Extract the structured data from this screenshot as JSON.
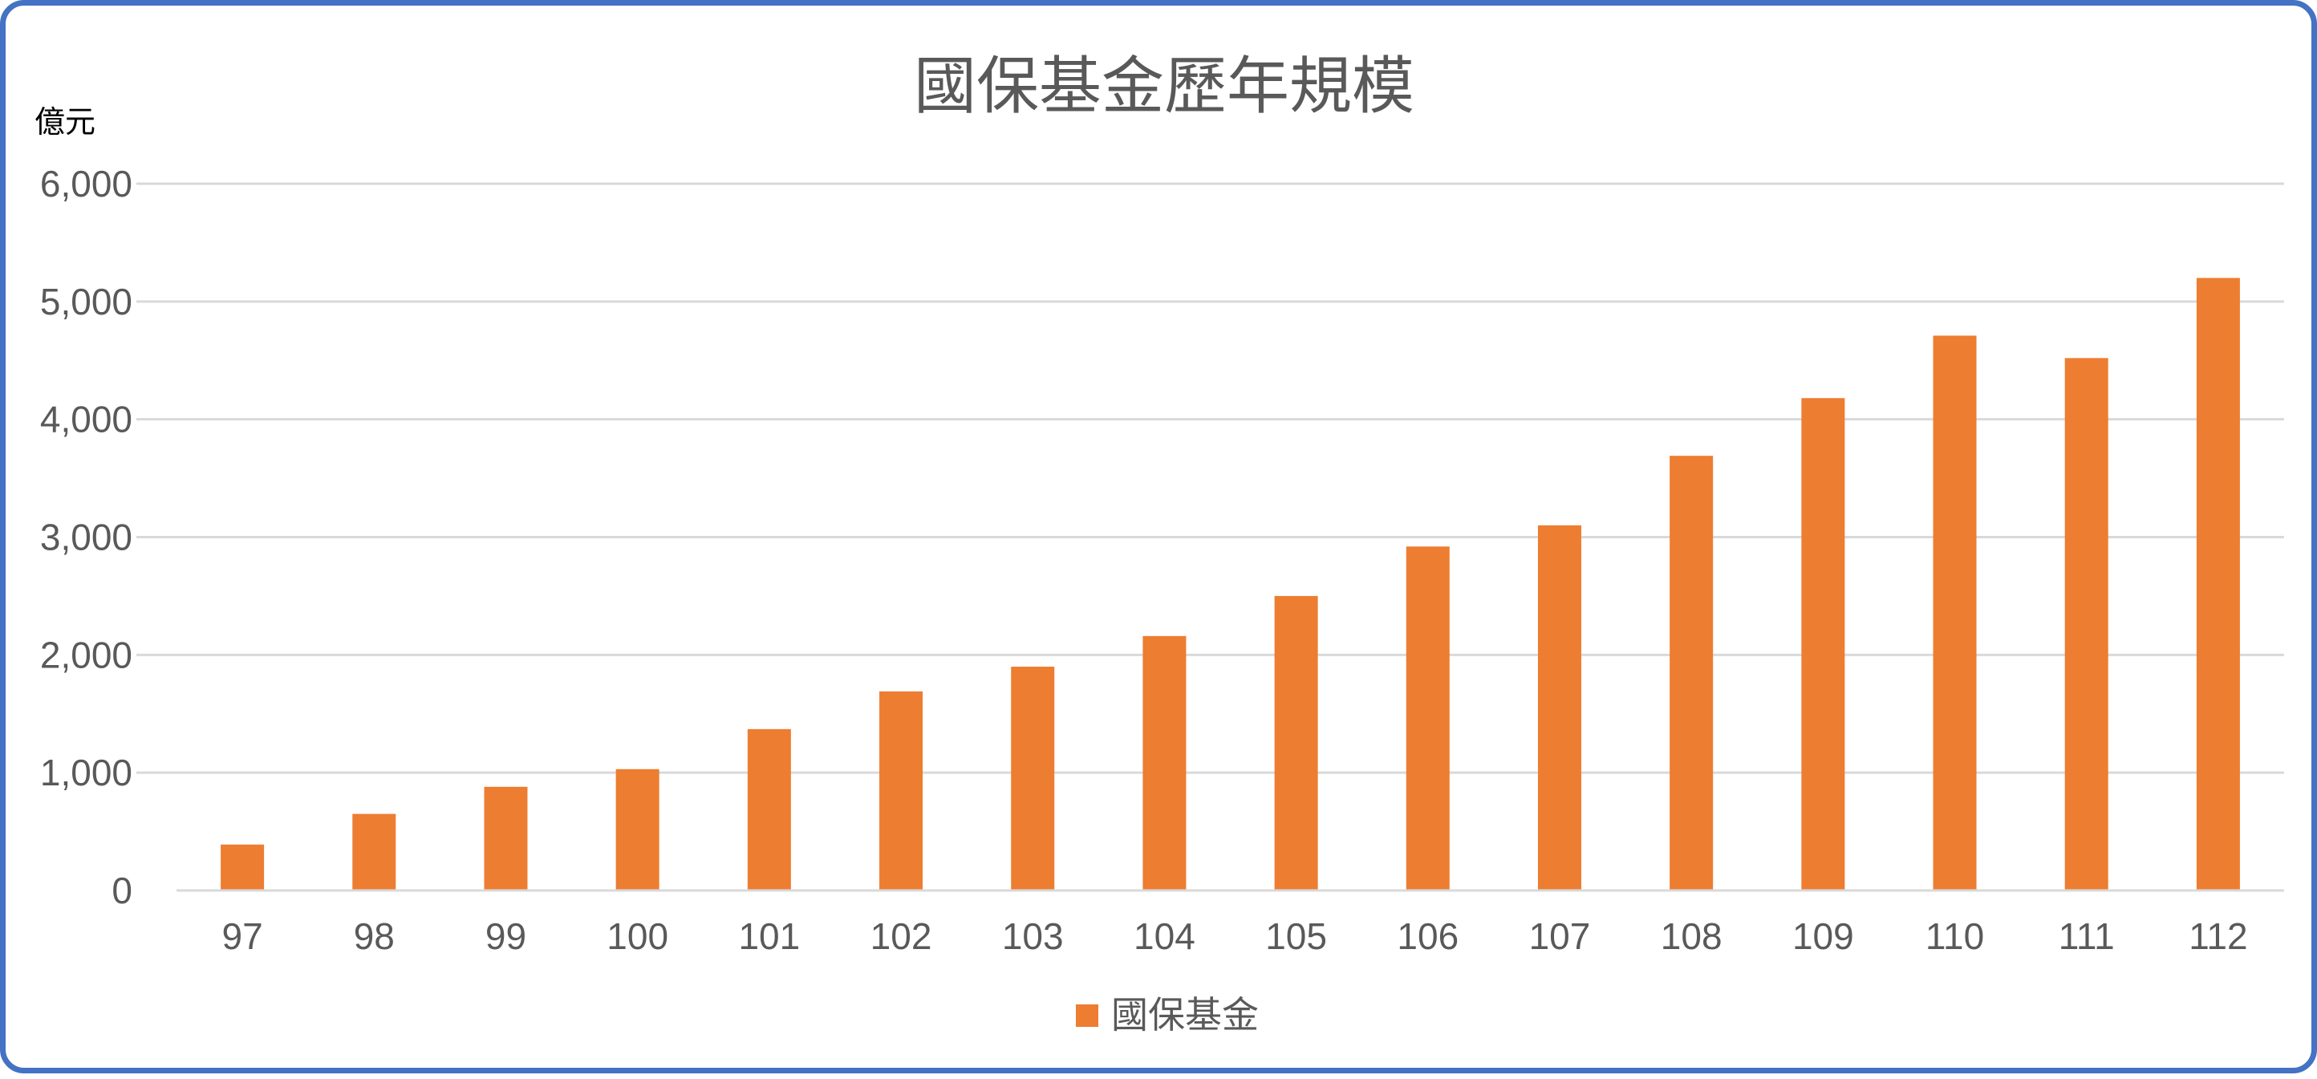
{
  "colors": {
    "bar": "#ed7d31",
    "frame": "#4472c4",
    "grid": "#d9d9d9",
    "text": "#595959"
  },
  "chart_data": {
    "type": "bar",
    "title": "國保基金歷年規模",
    "ylabel": "億元",
    "xlabel": "",
    "categories": [
      "97",
      "98",
      "99",
      "100",
      "101",
      "102",
      "103",
      "104",
      "105",
      "106",
      "107",
      "108",
      "109",
      "110",
      "111",
      "112"
    ],
    "series": [
      {
        "name": "國保基金",
        "color": "#ed7d31",
        "values": [
          390,
          650,
          880,
          1030,
          1370,
          1690,
          1900,
          2160,
          2500,
          2920,
          3100,
          3690,
          4180,
          4710,
          4520,
          5200
        ]
      }
    ],
    "ylim": [
      0,
      6000
    ],
    "yticks": [
      0,
      1000,
      2000,
      3000,
      4000,
      5000,
      6000
    ],
    "ytick_labels": [
      "0",
      "1,000",
      "2,000",
      "3,000",
      "4,000",
      "5,000",
      "6,000"
    ],
    "grid": true,
    "legend": "bottom"
  }
}
